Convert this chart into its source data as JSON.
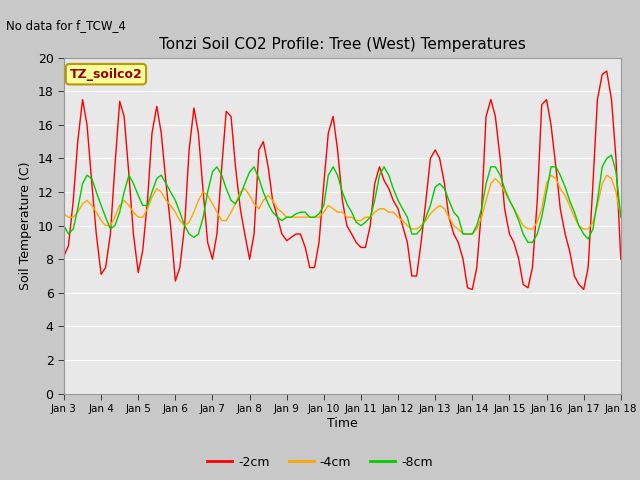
{
  "title": "Tonzi Soil CO2 Profile: Tree (West) Temperatures",
  "subtitle": "No data for f_TCW_4",
  "ylabel": "Soil Temperature (C)",
  "xlabel": "Time",
  "legend_label": "TZ_soilco2",
  "ylim": [
    0,
    20
  ],
  "fig_bg": "#c8c8c8",
  "plot_bg": "#e8e8e8",
  "series": {
    "red": {
      "label": "-2cm",
      "color": "#ff0000",
      "x": [
        3.0,
        3.12,
        3.25,
        3.37,
        3.5,
        3.62,
        3.75,
        3.87,
        4.0,
        4.12,
        4.25,
        4.37,
        4.5,
        4.62,
        4.75,
        4.87,
        5.0,
        5.12,
        5.25,
        5.37,
        5.5,
        5.62,
        5.75,
        5.87,
        6.0,
        6.12,
        6.25,
        6.37,
        6.5,
        6.62,
        6.75,
        6.87,
        7.0,
        7.12,
        7.25,
        7.37,
        7.5,
        7.62,
        7.75,
        7.87,
        8.0,
        8.12,
        8.25,
        8.37,
        8.5,
        8.62,
        8.75,
        8.87,
        9.0,
        9.12,
        9.25,
        9.37,
        9.5,
        9.62,
        9.75,
        9.87,
        10.0,
        10.12,
        10.25,
        10.37,
        10.5,
        10.62,
        10.75,
        10.87,
        11.0,
        11.12,
        11.25,
        11.37,
        11.5,
        11.62,
        11.75,
        11.87,
        12.0,
        12.12,
        12.25,
        12.37,
        12.5,
        12.62,
        12.75,
        12.87,
        13.0,
        13.12,
        13.25,
        13.37,
        13.5,
        13.62,
        13.75,
        13.87,
        14.0,
        14.12,
        14.25,
        14.37,
        14.5,
        14.62,
        14.75,
        14.87,
        15.0,
        15.12,
        15.25,
        15.37,
        15.5,
        15.62,
        15.75,
        15.87,
        16.0,
        16.12,
        16.25,
        16.37,
        16.5,
        16.62,
        16.75,
        16.87,
        17.0,
        17.12,
        17.25,
        17.37,
        17.5,
        17.62,
        17.75,
        17.87,
        18.0
      ],
      "y": [
        8.2,
        8.8,
        11.5,
        15.0,
        17.5,
        16.0,
        12.5,
        9.5,
        7.1,
        7.5,
        9.5,
        13.5,
        17.4,
        16.5,
        13.0,
        9.5,
        7.2,
        8.5,
        11.5,
        15.5,
        17.1,
        15.5,
        12.5,
        10.0,
        6.7,
        7.5,
        10.0,
        14.5,
        17.0,
        15.5,
        12.0,
        9.0,
        8.0,
        9.5,
        13.5,
        16.8,
        16.5,
        13.5,
        11.0,
        9.5,
        8.0,
        9.5,
        14.5,
        15.0,
        13.5,
        11.5,
        10.5,
        9.5,
        9.1,
        9.3,
        9.5,
        9.5,
        8.7,
        7.5,
        7.5,
        9.0,
        12.5,
        15.5,
        16.5,
        14.5,
        11.5,
        10.0,
        9.5,
        9.0,
        8.7,
        8.7,
        10.0,
        12.5,
        13.5,
        12.7,
        12.2,
        11.5,
        11.0,
        10.0,
        9.0,
        7.0,
        7.0,
        9.0,
        11.5,
        14.0,
        14.5,
        14.0,
        12.5,
        10.5,
        9.5,
        9.0,
        8.0,
        6.3,
        6.2,
        7.5,
        11.0,
        16.5,
        17.5,
        16.5,
        14.0,
        11.0,
        9.5,
        9.0,
        8.0,
        6.5,
        6.3,
        7.5,
        11.5,
        17.2,
        17.5,
        16.0,
        13.5,
        11.0,
        9.5,
        8.5,
        7.0,
        6.5,
        6.2,
        7.5,
        12.5,
        17.5,
        19.0,
        19.2,
        17.5,
        14.0,
        8.0
      ]
    },
    "orange": {
      "label": "-4cm",
      "color": "#ffa500",
      "x": [
        3.0,
        3.12,
        3.25,
        3.37,
        3.5,
        3.62,
        3.75,
        3.87,
        4.0,
        4.12,
        4.25,
        4.37,
        4.5,
        4.62,
        4.75,
        4.87,
        5.0,
        5.12,
        5.25,
        5.37,
        5.5,
        5.62,
        5.75,
        5.87,
        6.0,
        6.12,
        6.25,
        6.37,
        6.5,
        6.62,
        6.75,
        6.87,
        7.0,
        7.12,
        7.25,
        7.37,
        7.5,
        7.62,
        7.75,
        7.87,
        8.0,
        8.12,
        8.25,
        8.37,
        8.5,
        8.62,
        8.75,
        8.87,
        9.0,
        9.12,
        9.25,
        9.37,
        9.5,
        9.62,
        9.75,
        9.87,
        10.0,
        10.12,
        10.25,
        10.37,
        10.5,
        10.62,
        10.75,
        10.87,
        11.0,
        11.12,
        11.25,
        11.37,
        11.5,
        11.62,
        11.75,
        11.87,
        12.0,
        12.12,
        12.25,
        12.37,
        12.5,
        12.62,
        12.75,
        12.87,
        13.0,
        13.12,
        13.25,
        13.37,
        13.5,
        13.62,
        13.75,
        13.87,
        14.0,
        14.12,
        14.25,
        14.37,
        14.5,
        14.62,
        14.75,
        14.87,
        15.0,
        15.12,
        15.25,
        15.37,
        15.5,
        15.62,
        15.75,
        15.87,
        16.0,
        16.12,
        16.25,
        16.37,
        16.5,
        16.62,
        16.75,
        16.87,
        17.0,
        17.12,
        17.25,
        17.37,
        17.5,
        17.62,
        17.75,
        17.87,
        18.0
      ],
      "y": [
        10.7,
        10.5,
        10.5,
        10.8,
        11.3,
        11.5,
        11.2,
        10.8,
        10.3,
        10.0,
        10.0,
        10.5,
        11.2,
        11.5,
        11.2,
        10.8,
        10.5,
        10.5,
        11.0,
        11.7,
        12.2,
        12.0,
        11.5,
        11.2,
        10.8,
        10.3,
        10.0,
        10.2,
        10.8,
        11.5,
        12.0,
        11.8,
        11.3,
        10.8,
        10.3,
        10.3,
        10.8,
        11.3,
        12.0,
        12.2,
        11.8,
        11.3,
        11.0,
        11.5,
        11.8,
        11.5,
        11.0,
        10.8,
        10.5,
        10.5,
        10.5,
        10.5,
        10.5,
        10.5,
        10.5,
        10.5,
        10.8,
        11.2,
        11.0,
        10.8,
        10.8,
        10.5,
        10.5,
        10.3,
        10.3,
        10.5,
        10.5,
        10.8,
        11.0,
        11.0,
        10.8,
        10.8,
        10.5,
        10.3,
        10.0,
        9.8,
        9.8,
        10.0,
        10.3,
        10.7,
        11.0,
        11.2,
        11.0,
        10.5,
        10.0,
        9.8,
        9.5,
        9.5,
        9.5,
        9.8,
        10.5,
        11.5,
        12.5,
        12.8,
        12.5,
        12.0,
        11.5,
        11.0,
        10.5,
        10.0,
        9.8,
        9.8,
        10.2,
        11.0,
        12.5,
        13.0,
        12.8,
        12.2,
        11.8,
        11.2,
        10.5,
        10.0,
        9.8,
        9.8,
        10.2,
        11.2,
        12.5,
        13.0,
        12.8,
        12.0,
        10.5
      ]
    },
    "green": {
      "label": "-8cm",
      "color": "#00cc00",
      "x": [
        3.0,
        3.12,
        3.25,
        3.37,
        3.5,
        3.62,
        3.75,
        3.87,
        4.0,
        4.12,
        4.25,
        4.37,
        4.5,
        4.62,
        4.75,
        4.87,
        5.0,
        5.12,
        5.25,
        5.37,
        5.5,
        5.62,
        5.75,
        5.87,
        6.0,
        6.12,
        6.25,
        6.37,
        6.5,
        6.62,
        6.75,
        6.87,
        7.0,
        7.12,
        7.25,
        7.37,
        7.5,
        7.62,
        7.75,
        7.87,
        8.0,
        8.12,
        8.25,
        8.37,
        8.5,
        8.62,
        8.75,
        8.87,
        9.0,
        9.12,
        9.25,
        9.37,
        9.5,
        9.62,
        9.75,
        9.87,
        10.0,
        10.12,
        10.25,
        10.37,
        10.5,
        10.62,
        10.75,
        10.87,
        11.0,
        11.12,
        11.25,
        11.37,
        11.5,
        11.62,
        11.75,
        11.87,
        12.0,
        12.12,
        12.25,
        12.37,
        12.5,
        12.62,
        12.75,
        12.87,
        13.0,
        13.12,
        13.25,
        13.37,
        13.5,
        13.62,
        13.75,
        13.87,
        14.0,
        14.12,
        14.25,
        14.37,
        14.5,
        14.62,
        14.75,
        14.87,
        15.0,
        15.12,
        15.25,
        15.37,
        15.5,
        15.62,
        15.75,
        15.87,
        16.0,
        16.12,
        16.25,
        16.37,
        16.5,
        16.62,
        16.75,
        16.87,
        17.0,
        17.12,
        17.25,
        17.37,
        17.5,
        17.62,
        17.75,
        17.87,
        18.0
      ],
      "y": [
        10.0,
        9.5,
        9.8,
        11.0,
        12.5,
        13.0,
        12.8,
        12.0,
        11.2,
        10.5,
        9.8,
        10.0,
        10.8,
        12.0,
        13.0,
        12.5,
        11.8,
        11.2,
        11.2,
        12.0,
        12.8,
        13.0,
        12.5,
        12.0,
        11.5,
        10.8,
        10.0,
        9.5,
        9.3,
        9.5,
        10.5,
        12.0,
        13.2,
        13.5,
        13.0,
        12.2,
        11.5,
        11.3,
        11.8,
        12.5,
        13.2,
        13.5,
        12.8,
        12.0,
        11.3,
        10.8,
        10.5,
        10.3,
        10.5,
        10.5,
        10.7,
        10.8,
        10.8,
        10.5,
        10.5,
        10.7,
        11.2,
        13.0,
        13.5,
        13.0,
        12.0,
        11.3,
        10.8,
        10.2,
        10.0,
        10.2,
        10.5,
        11.5,
        13.0,
        13.5,
        13.0,
        12.2,
        11.5,
        11.0,
        10.5,
        9.5,
        9.5,
        9.8,
        10.5,
        11.2,
        12.3,
        12.5,
        12.2,
        11.5,
        10.8,
        10.5,
        9.5,
        9.5,
        9.5,
        10.0,
        11.0,
        12.5,
        13.5,
        13.5,
        13.0,
        12.2,
        11.5,
        11.0,
        10.3,
        9.5,
        9.0,
        9.0,
        9.5,
        10.5,
        12.0,
        13.5,
        13.5,
        13.0,
        12.3,
        11.5,
        10.8,
        10.0,
        9.5,
        9.2,
        9.8,
        11.5,
        13.5,
        14.0,
        14.2,
        13.2,
        10.5
      ]
    }
  },
  "xticks": [
    3,
    4,
    5,
    6,
    7,
    8,
    9,
    10,
    11,
    12,
    13,
    14,
    15,
    16,
    17,
    18
  ],
  "xtick_labels": [
    "Jan 3",
    "Jan 4",
    "Jan 5",
    "Jan 6",
    "Jan 7",
    "Jan 8",
    "Jan 9",
    "Jan 10",
    "Jan 11",
    "Jan 12",
    "Jan 13",
    "Jan 14",
    "Jan 15",
    "Jan 16",
    "Jan 17",
    "Jan 18"
  ],
  "yticks": [
    0,
    2,
    4,
    6,
    8,
    10,
    12,
    14,
    16,
    18,
    20
  ],
  "grid_color": "#ffffff",
  "legend_box_color": "#ffff99",
  "legend_box_edge": "#b8960c",
  "legend_text_color": "#990000"
}
